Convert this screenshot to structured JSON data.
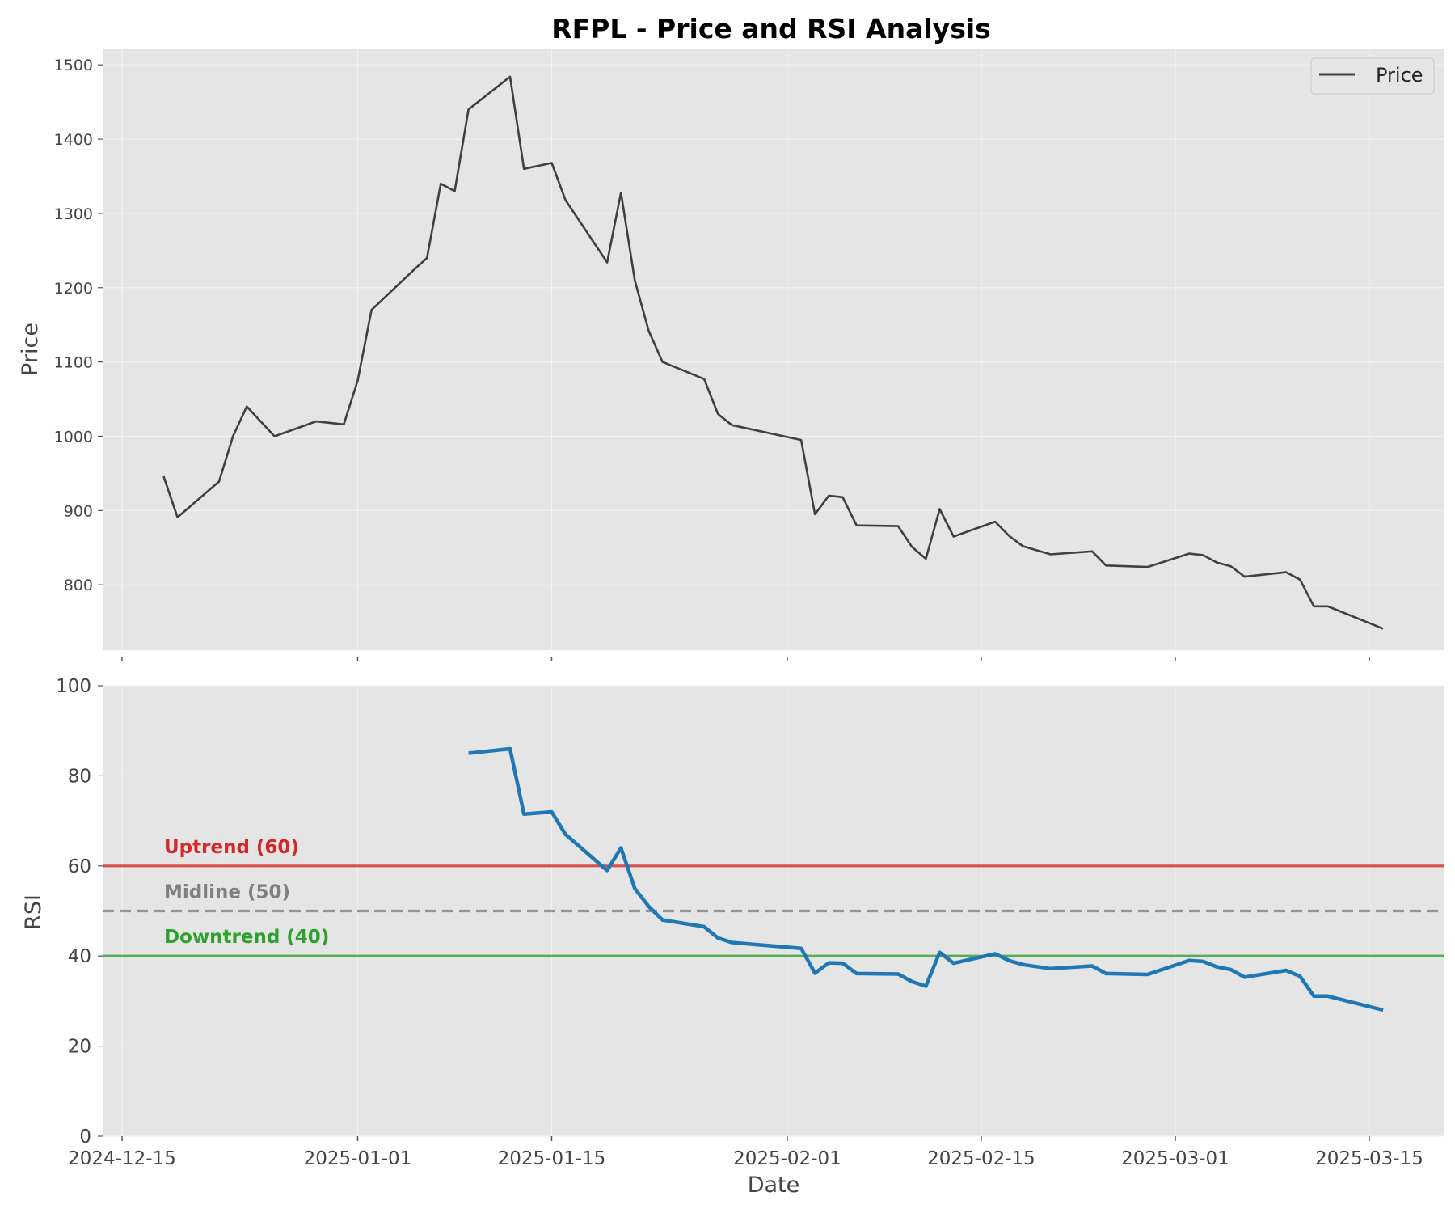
{
  "chart_data": {
    "type": "line",
    "title": "RFPL - Price and RSI Analysis",
    "xlabel": "Date",
    "x_tick_labels": [
      "2024-12-15",
      "2025-01-01",
      "2025-01-15",
      "2025-02-01",
      "2025-02-15",
      "2025-03-01",
      "2025-03-15"
    ],
    "grid": true,
    "panels": [
      {
        "id": "price",
        "ylabel": "Price",
        "ylim": [
          712,
          1522
        ],
        "y_ticks": [
          800,
          900,
          1000,
          1100,
          1200,
          1300,
          1400,
          1500
        ],
        "legend": {
          "position": "top-right",
          "entries": [
            "Price"
          ]
        },
        "series": [
          {
            "name": "Price",
            "color": "#404040",
            "points": [
              [
                "2024-12-18",
                946
              ],
              [
                "2024-12-19",
                891
              ],
              [
                "2024-12-22",
                939
              ],
              [
                "2024-12-23",
                1000
              ],
              [
                "2024-12-24",
                1040
              ],
              [
                "2024-12-26",
                1000
              ],
              [
                "2024-12-29",
                1020
              ],
              [
                "2024-12-31",
                1016
              ],
              [
                "2025-01-01",
                1075
              ],
              [
                "2025-01-02",
                1170
              ],
              [
                "2025-01-05",
                1223
              ],
              [
                "2025-01-06",
                1240
              ],
              [
                "2025-01-07",
                1340
              ],
              [
                "2025-01-08",
                1330
              ],
              [
                "2025-01-09",
                1440
              ],
              [
                "2025-01-12",
                1484
              ],
              [
                "2025-01-13",
                1360
              ],
              [
                "2025-01-15",
                1368
              ],
              [
                "2025-01-16",
                1318
              ],
              [
                "2025-01-19",
                1234
              ],
              [
                "2025-01-20",
                1328
              ],
              [
                "2025-01-21",
                1210
              ],
              [
                "2025-01-22",
                1142
              ],
              [
                "2025-01-23",
                1100
              ],
              [
                "2025-01-26",
                1077
              ],
              [
                "2025-01-27",
                1030
              ],
              [
                "2025-01-28",
                1015
              ],
              [
                "2025-02-02",
                995
              ],
              [
                "2025-02-03",
                895
              ],
              [
                "2025-02-04",
                920
              ],
              [
                "2025-02-05",
                918
              ],
              [
                "2025-02-06",
                880
              ],
              [
                "2025-02-09",
                879
              ],
              [
                "2025-02-10",
                851
              ],
              [
                "2025-02-11",
                835
              ],
              [
                "2025-02-12",
                902
              ],
              [
                "2025-02-13",
                865
              ],
              [
                "2025-02-16",
                885
              ],
              [
                "2025-02-17",
                866
              ],
              [
                "2025-02-18",
                852
              ],
              [
                "2025-02-20",
                841
              ],
              [
                "2025-02-23",
                845
              ],
              [
                "2025-02-24",
                826
              ],
              [
                "2025-02-27",
                824
              ],
              [
                "2025-03-02",
                842
              ],
              [
                "2025-03-03",
                840
              ],
              [
                "2025-03-04",
                830
              ],
              [
                "2025-03-05",
                825
              ],
              [
                "2025-03-06",
                811
              ],
              [
                "2025-03-09",
                817
              ],
              [
                "2025-03-10",
                807
              ],
              [
                "2025-03-11",
                771
              ],
              [
                "2025-03-12",
                771
              ],
              [
                "2025-03-16",
                741
              ]
            ]
          }
        ]
      },
      {
        "id": "rsi",
        "ylabel": "RSI",
        "ylim": [
          0,
          100
        ],
        "y_ticks": [
          0,
          20,
          40,
          60,
          80,
          100
        ],
        "reference_lines": [
          {
            "value": 60,
            "label": "Uptrend (60)",
            "color": "#d62728",
            "style": "solid"
          },
          {
            "value": 50,
            "label": "Midline (50)",
            "color": "#808080",
            "style": "dashed"
          },
          {
            "value": 40,
            "label": "Downtrend (40)",
            "color": "#2ca02c",
            "style": "solid"
          }
        ],
        "series": [
          {
            "name": "RSI",
            "color": "#1f77b4",
            "points": [
              [
                "2025-01-09",
                85
              ],
              [
                "2025-01-12",
                86
              ],
              [
                "2025-01-13",
                71.5
              ],
              [
                "2025-01-15",
                72
              ],
              [
                "2025-01-16",
                67
              ],
              [
                "2025-01-19",
                59
              ],
              [
                "2025-01-20",
                64
              ],
              [
                "2025-01-21",
                55
              ],
              [
                "2025-01-22",
                51
              ],
              [
                "2025-01-23",
                48
              ],
              [
                "2025-01-26",
                46.5
              ],
              [
                "2025-01-27",
                44
              ],
              [
                "2025-01-28",
                43
              ],
              [
                "2025-02-02",
                41.7
              ],
              [
                "2025-02-03",
                36.2
              ],
              [
                "2025-02-04",
                38.5
              ],
              [
                "2025-02-05",
                38.4
              ],
              [
                "2025-02-06",
                36.1
              ],
              [
                "2025-02-09",
                36
              ],
              [
                "2025-02-10",
                34.3
              ],
              [
                "2025-02-11",
                33.3
              ],
              [
                "2025-02-12",
                40.8
              ],
              [
                "2025-02-13",
                38.4
              ],
              [
                "2025-02-16",
                40.5
              ],
              [
                "2025-02-17",
                39
              ],
              [
                "2025-02-18",
                38.1
              ],
              [
                "2025-02-20",
                37.2
              ],
              [
                "2025-02-23",
                37.8
              ],
              [
                "2025-02-24",
                36.1
              ],
              [
                "2025-02-27",
                35.9
              ],
              [
                "2025-03-02",
                39
              ],
              [
                "2025-03-03",
                38.8
              ],
              [
                "2025-03-04",
                37.6
              ],
              [
                "2025-03-05",
                37
              ],
              [
                "2025-03-06",
                35.3
              ],
              [
                "2025-03-09",
                36.8
              ],
              [
                "2025-03-10",
                35.5
              ],
              [
                "2025-03-11",
                31.1
              ],
              [
                "2025-03-12",
                31.1
              ],
              [
                "2025-03-16",
                28
              ]
            ]
          }
        ]
      }
    ]
  }
}
